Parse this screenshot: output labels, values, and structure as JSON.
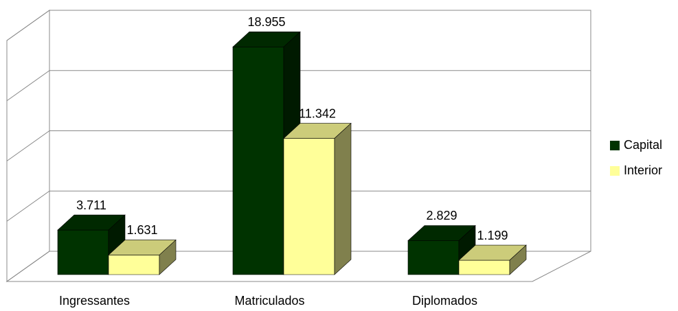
{
  "chart_data": {
    "type": "bar3d",
    "categories": [
      "Ingressantes",
      "Matriculados",
      "Diplomados"
    ],
    "series": [
      {
        "name": "Capital",
        "color": "#003300",
        "values": [
          3711,
          18955,
          2829
        ],
        "value_labels": [
          "3.711",
          "18.955",
          "2.829"
        ]
      },
      {
        "name": "Interior",
        "color": "#ffff99",
        "values": [
          1631,
          11342,
          1199
        ],
        "value_labels": [
          "1.631",
          "11.342",
          "1.199"
        ]
      }
    ],
    "ylim": [
      0,
      20000
    ],
    "yticks": [
      0,
      5000,
      10000,
      15000,
      20000
    ],
    "grid": true,
    "legend": "right"
  }
}
